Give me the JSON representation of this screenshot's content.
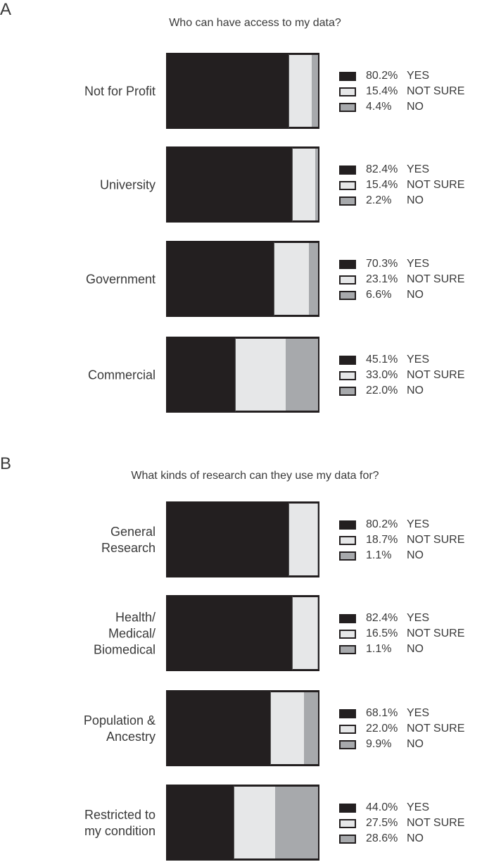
{
  "colors": {
    "yes": "#231f20",
    "not_sure": "#e6e7e8",
    "no": "#a7a9ac"
  },
  "panels": [
    {
      "letter": "A",
      "title": "Who can have access to my data?",
      "rows": [
        {
          "label": "Not for Profit",
          "yes": "80.2%",
          "not_sure": "15.4%",
          "no": "4.4%"
        },
        {
          "label": "University",
          "yes": "82.4%",
          "not_sure": "15.4%",
          "no": "2.2%"
        },
        {
          "label": "Government",
          "yes": "70.3%",
          "not_sure": "23.1%",
          "no": "6.6%"
        },
        {
          "label": "Commercial",
          "yes": "45.1%",
          "not_sure": "33.0%",
          "no": "22.0%"
        }
      ]
    },
    {
      "letter": "B",
      "title": "What kinds of research can they use my data for?",
      "rows": [
        {
          "label": "General\nResearch",
          "yes": "80.2%",
          "not_sure": "18.7%",
          "no": "1.1%"
        },
        {
          "label": "Health/\nMedical/\nBiomedical",
          "yes": "82.4%",
          "not_sure": "16.5%",
          "no": "1.1%"
        },
        {
          "label": "Population &\nAncestry",
          "yes": "68.1%",
          "not_sure": "22.0%",
          "no": "9.9%"
        },
        {
          "label": "Restricted to\nmy condition",
          "yes": "44.0%",
          "not_sure": "27.5%",
          "no": "28.6%"
        }
      ]
    }
  ],
  "legend_labels": {
    "yes": "YES",
    "not_sure": "NOT SURE",
    "no": "NO"
  },
  "chart_data": [
    {
      "type": "bar",
      "orientation": "horizontal-stacked-100",
      "panel": "A",
      "title": "Who can have access to my data?",
      "categories": [
        "Not for Profit",
        "University",
        "Government",
        "Commercial"
      ],
      "series": [
        {
          "name": "YES",
          "color": "#231f20",
          "values": [
            80.2,
            82.4,
            70.3,
            45.1
          ]
        },
        {
          "name": "NOT SURE",
          "color": "#e6e7e8",
          "values": [
            15.4,
            15.4,
            23.1,
            33.0
          ]
        },
        {
          "name": "NO",
          "color": "#a7a9ac",
          "values": [
            4.4,
            2.2,
            6.6,
            22.0
          ]
        }
      ],
      "xlabel": "",
      "ylabel": "",
      "xlim": [
        0,
        100
      ],
      "grid": false,
      "legend_position": "right of each bar"
    },
    {
      "type": "bar",
      "orientation": "horizontal-stacked-100",
      "panel": "B",
      "title": "What kinds of research can they use my data for?",
      "categories": [
        "General Research",
        "Health/Medical/Biomedical",
        "Population & Ancestry",
        "Restricted to my condition"
      ],
      "series": [
        {
          "name": "YES",
          "color": "#231f20",
          "values": [
            80.2,
            82.4,
            68.1,
            44.0
          ]
        },
        {
          "name": "NOT SURE",
          "color": "#e6e7e8",
          "values": [
            18.7,
            16.5,
            22.0,
            27.5
          ]
        },
        {
          "name": "NO",
          "color": "#a7a9ac",
          "values": [
            1.1,
            1.1,
            9.9,
            28.6
          ]
        }
      ],
      "xlabel": "",
      "ylabel": "",
      "xlim": [
        0,
        100
      ],
      "grid": false,
      "legend_position": "right of each bar"
    }
  ]
}
